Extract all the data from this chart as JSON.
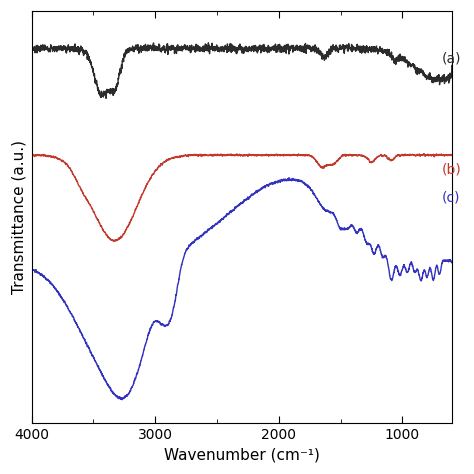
{
  "xlim": [
    4000,
    600
  ],
  "xlabel": "Wavenumber (cm⁻¹)",
  "ylabel": "Transmittance (a.u.)",
  "label_a": "(a)",
  "label_b": "(b)",
  "label_c": "(c)",
  "color_a": "#2b2b2b",
  "color_b": "#c0392b",
  "color_c": "#3333bb",
  "xticks": [
    4000,
    3000,
    2000,
    1000
  ],
  "background": "#ffffff",
  "linewidth": 1.0
}
